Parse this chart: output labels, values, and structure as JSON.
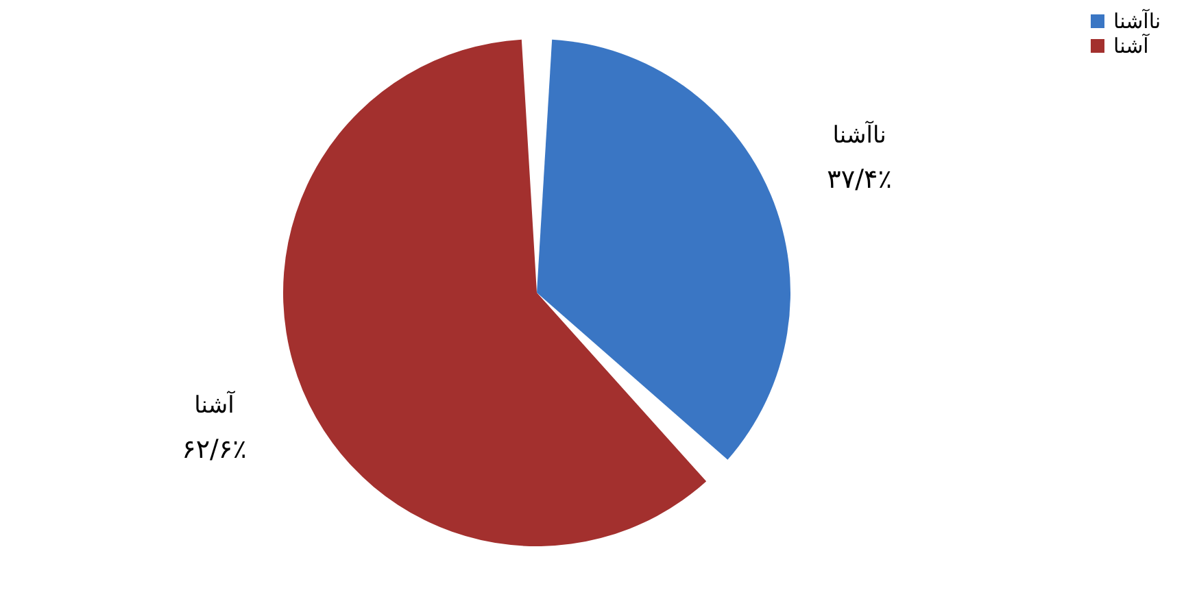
{
  "chart_data": {
    "type": "pie",
    "categories": [
      "ناآشنا",
      "آشنا"
    ],
    "values": [
      37.4,
      62.6
    ],
    "colors": [
      "#3a76c4",
      "#a3302e"
    ],
    "value_labels": [
      "۳۷/۴٪",
      "۶۲/۶٪"
    ],
    "legend": "right"
  }
}
